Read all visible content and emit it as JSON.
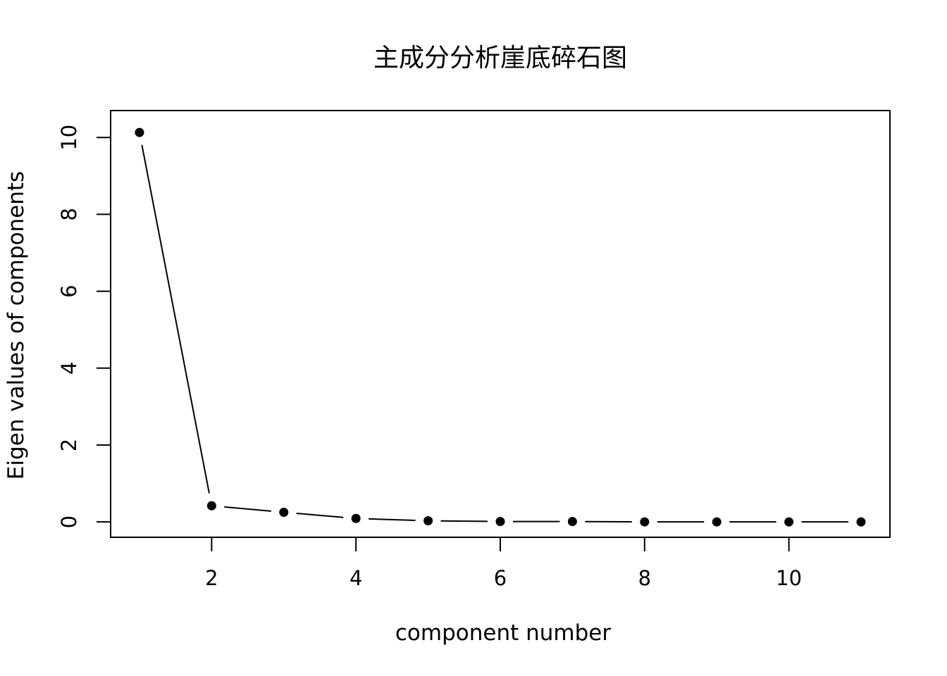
{
  "chart_data": {
    "type": "line",
    "title": "主成分分析崖底碎石图",
    "xlabel": "component number",
    "ylabel": "Eigen values of components",
    "x": [
      1,
      2,
      3,
      4,
      5,
      6,
      7,
      8,
      9,
      10,
      11
    ],
    "values": [
      10.13,
      0.42,
      0.25,
      0.09,
      0.03,
      0.01,
      0.01,
      0.0,
      0.0,
      0.0,
      0.0
    ],
    "xlim": [
      0.6,
      11.4
    ],
    "ylim": [
      -0.4,
      10.7
    ],
    "xticks": [
      "2",
      "4",
      "6",
      "8",
      "10"
    ],
    "yticks": [
      "0",
      "2",
      "4",
      "6",
      "8",
      "10"
    ],
    "style": "both points and lines (R type='b')",
    "point_color": "#000000",
    "line_color": "#000000",
    "grid": false,
    "legend": "none"
  }
}
